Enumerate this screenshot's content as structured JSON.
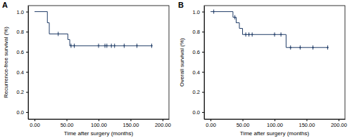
{
  "chart_data": [
    {
      "type": "line",
      "title": "A",
      "x_label": "Time after surgery (months)",
      "y_label": "Recurrence-free survival (%)",
      "xlim": [
        -10,
        210
      ],
      "ylim": [
        -0.07,
        1.06
      ],
      "xticks": [
        {
          "value": 0,
          "label": "0.00"
        },
        {
          "value": 50,
          "label": "50.00"
        },
        {
          "value": 100,
          "label": "100.00"
        },
        {
          "value": 150,
          "label": "150.00"
        },
        {
          "value": 200,
          "label": "200.00"
        }
      ],
      "yticks": [
        {
          "value": 0,
          "label": "0.0"
        },
        0.2,
        0.4,
        0.6,
        0.8,
        {
          "value": 1,
          "label": "1.0"
        }
      ],
      "series": [
        {
          "type": "line",
          "line_style": "step",
          "color": "#1f3b66",
          "x": [
            0,
            20,
            23,
            52,
            55,
            183
          ],
          "values": [
            1,
            0.889,
            0.778,
            0.722,
            0.66,
            0.66
          ]
        },
        {
          "type": "scatter",
          "marker": "plus",
          "color": "#1f3b66",
          "x": [
            37,
            57,
            62,
            100,
            110,
            113,
            120,
            125,
            140,
            160,
            183
          ],
          "values": [
            0.778,
            0.66,
            0.66,
            0.66,
            0.66,
            0.66,
            0.66,
            0.66,
            0.66,
            0.66,
            0.66
          ]
        }
      ]
    },
    {
      "type": "line",
      "title": "B",
      "x_label": "Time after surgery (months)",
      "y_label": "Overall survival (%)",
      "xlim": [
        -10,
        210
      ],
      "ylim": [
        -0.07,
        1.06
      ],
      "xticks": [
        {
          "value": 0,
          "label": "0.00"
        },
        {
          "value": 50,
          "label": "50.00"
        },
        {
          "value": 100,
          "label": "100.00"
        },
        {
          "value": 150,
          "label": "150.00"
        },
        {
          "value": 200,
          "label": "200.00"
        }
      ],
      "yticks": [
        {
          "value": 0,
          "label": "0.0"
        },
        0.2,
        0.4,
        0.6,
        0.8,
        {
          "value": 1,
          "label": "1.0"
        }
      ],
      "series": [
        {
          "type": "line",
          "line_style": "step",
          "color": "#1f3b66",
          "x": [
            0,
            35,
            40,
            45,
            50,
            118,
            183
          ],
          "values": [
            1,
            0.944,
            0.889,
            0.833,
            0.772,
            0.643,
            0.643
          ]
        },
        {
          "type": "scatter",
          "marker": "plus",
          "color": "#1f3b66",
          "x": [
            5,
            38,
            55,
            60,
            65,
            100,
            110,
            125,
            140,
            160,
            183
          ],
          "values": [
            1,
            0.944,
            0.772,
            0.772,
            0.772,
            0.772,
            0.772,
            0.643,
            0.643,
            0.643,
            0.643
          ]
        }
      ]
    }
  ]
}
